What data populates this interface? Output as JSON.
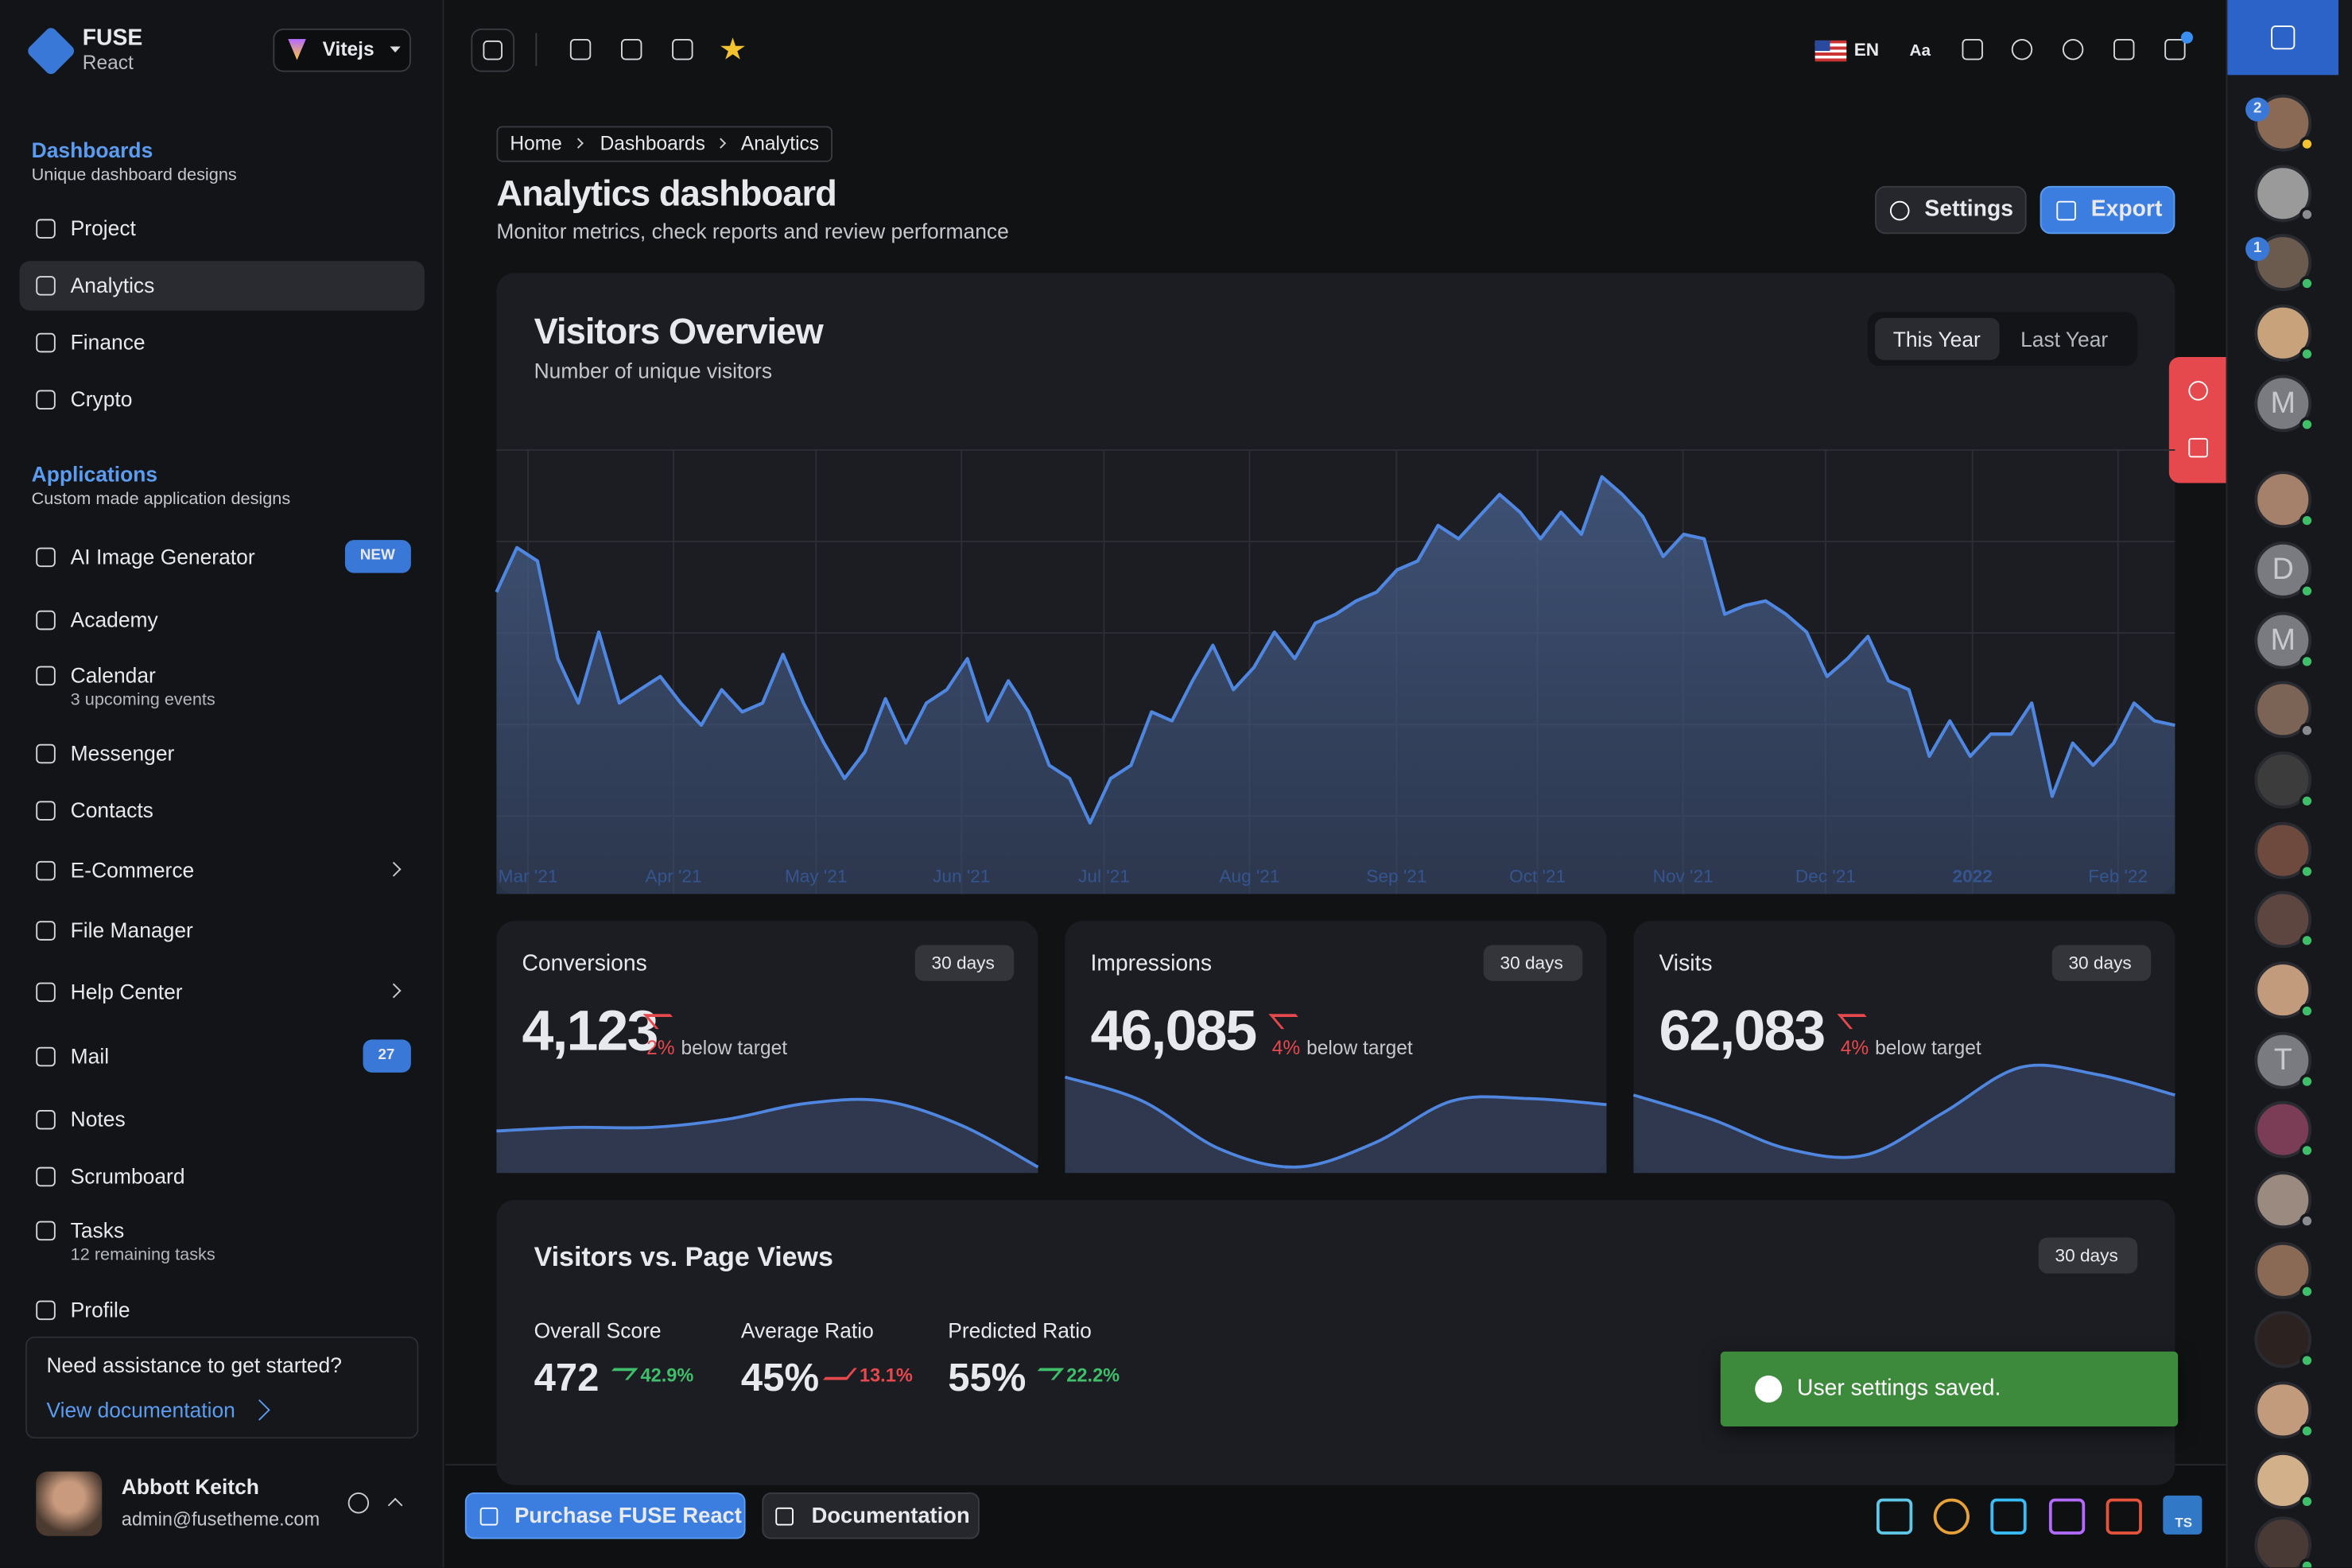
{
  "sidebar": {
    "brand": {
      "name": "FUSE",
      "sub": "React"
    },
    "switcher": "Vitejs",
    "sections": [
      {
        "title": "Dashboards",
        "subtitle": "Unique dashboard designs",
        "items": [
          {
            "label": "Project"
          },
          {
            "label": "Analytics"
          },
          {
            "label": "Finance"
          },
          {
            "label": "Crypto"
          }
        ]
      },
      {
        "title": "Applications",
        "subtitle": "Custom made application designs",
        "items": [
          {
            "label": "AI Image Generator",
            "badge": "NEW"
          },
          {
            "label": "Academy"
          },
          {
            "label": "Calendar",
            "note": "3 upcoming events"
          },
          {
            "label": "Messenger"
          },
          {
            "label": "Contacts"
          },
          {
            "label": "E-Commerce"
          },
          {
            "label": "File Manager"
          },
          {
            "label": "Help Center"
          },
          {
            "label": "Mail",
            "badge": "27"
          },
          {
            "label": "Notes"
          },
          {
            "label": "Scrumboard"
          },
          {
            "label": "Tasks",
            "note": "12 remaining tasks"
          },
          {
            "label": "Profile"
          }
        ]
      }
    ],
    "help": {
      "text": "Need assistance to get started?",
      "link": "View documentation"
    },
    "user": {
      "name": "Abbott Keitch",
      "email": "admin@fusetheme.com"
    }
  },
  "header": {
    "language": "EN",
    "font_label": "Aa"
  },
  "breadcrumb": [
    "Home",
    "Dashboards",
    "Analytics"
  ],
  "page": {
    "title": "Analytics dashboard",
    "subtitle": "Monitor metrics, check reports and review performance",
    "actions": [
      "Settings",
      "Export"
    ]
  },
  "visitors": {
    "title": "Visitors Overview",
    "subtitle": "Number of unique visitors",
    "tabs": [
      "This Year",
      "Last Year"
    ],
    "months": [
      "Mar '21",
      "Apr '21",
      "May '21",
      "Jun '21",
      "Jul '21",
      "Aug '21",
      "Sep '21",
      "Oct '21",
      "Nov '21",
      "Dec '21",
      "2022",
      "Feb '22"
    ],
    "ylim": [
      0,
      100
    ],
    "values": [
      68,
      78,
      75,
      53,
      43,
      59,
      43,
      46,
      49,
      43,
      38,
      46,
      41,
      43,
      54,
      43,
      34,
      26,
      32,
      44,
      34,
      43,
      46,
      53,
      39,
      48,
      41,
      29,
      26,
      16,
      26,
      29,
      41,
      39,
      48,
      56,
      46,
      51,
      59,
      53,
      61,
      63,
      66,
      68,
      73,
      75,
      83,
      80,
      85,
      90,
      86,
      80,
      86,
      81,
      94,
      90,
      85,
      76,
      81,
      80,
      63,
      65,
      66,
      63,
      59,
      49,
      53,
      58,
      48,
      46,
      31,
      39,
      31,
      36,
      36,
      43,
      22,
      34,
      29,
      34,
      43,
      39,
      38
    ]
  },
  "cards": [
    {
      "title": "Conversions",
      "period": "30 days",
      "value": "4,123",
      "change": "2%",
      "note": "below target",
      "trend": [
        35,
        38,
        38,
        45,
        58,
        60,
        40,
        5
      ]
    },
    {
      "title": "Impressions",
      "period": "30 days",
      "value": "46,085",
      "change": "4%",
      "note": "below target",
      "trend": [
        80,
        60,
        20,
        5,
        25,
        60,
        62,
        57
      ]
    },
    {
      "title": "Visits",
      "period": "30 days",
      "value": "62,083",
      "change": "4%",
      "note": "below target",
      "trend": [
        65,
        45,
        20,
        15,
        50,
        88,
        82,
        65
      ]
    }
  ],
  "views": {
    "title": "Visitors vs. Page Views",
    "period": "30 days",
    "stats": [
      {
        "label": "Overall Score",
        "value": "472",
        "change": "42.9%"
      },
      {
        "label": "Average Ratio",
        "value": "45%",
        "change": "13.1%"
      },
      {
        "label": "Predicted Ratio",
        "value": "55%",
        "change": "22.2%"
      }
    ]
  },
  "toast": "User settings saved.",
  "footer": {
    "buttons": [
      "Purchase FUSE React",
      "Documentation"
    ],
    "tech": "TS"
  },
  "contacts": {
    "badges": [
      "2",
      "1"
    ],
    "initials": [
      "M",
      "D",
      "M",
      "T"
    ]
  }
}
